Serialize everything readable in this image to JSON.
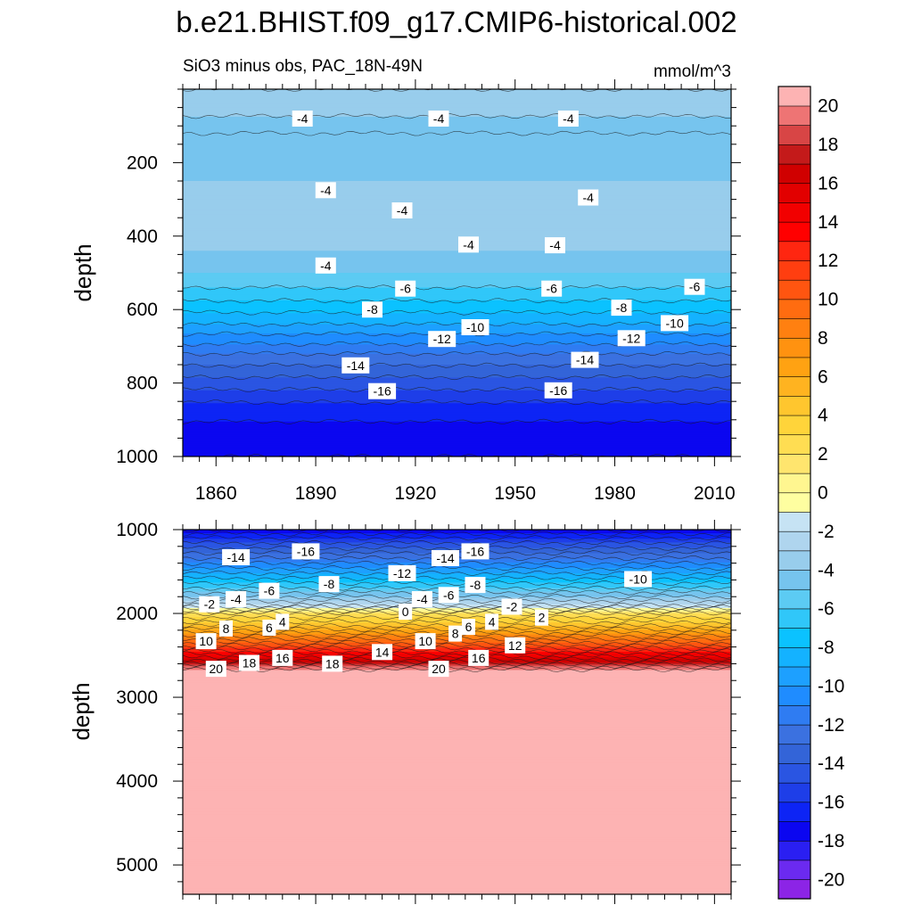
{
  "chart_data": {
    "type": "contour",
    "title": "b.e21.BHIST.f09_g17.CMIP6-historical.002",
    "subtitle_left": "SiO3 minus obs, PAC_18N-49N",
    "subtitle_right": "mmol/m^3",
    "panels": [
      {
        "name": "upper",
        "ylabel": "depth",
        "ylim": [
          0,
          1000
        ],
        "yticks": [
          200,
          400,
          600,
          800,
          1000
        ],
        "xticks": [
          1860,
          1890,
          1920,
          1950,
          1980,
          2010
        ],
        "xlim": [
          1850,
          2015
        ],
        "profile": [
          {
            "depth": 0,
            "value": -3
          },
          {
            "depth": 50,
            "value": -3.5
          },
          {
            "depth": 120,
            "value": -5
          },
          {
            "depth": 250,
            "value": -4
          },
          {
            "depth": 400,
            "value": -3.5
          },
          {
            "depth": 480,
            "value": -4.5
          },
          {
            "depth": 560,
            "value": -6.5
          },
          {
            "depth": 640,
            "value": -9
          },
          {
            "depth": 720,
            "value": -12
          },
          {
            "depth": 800,
            "value": -14.5
          },
          {
            "depth": 870,
            "value": -16.5
          },
          {
            "depth": 940,
            "value": -17.5
          },
          {
            "depth": 1000,
            "value": -18
          }
        ],
        "contour_labels": [
          {
            "x": 1886,
            "d": 80,
            "text": "-4"
          },
          {
            "x": 1927,
            "d": 80,
            "text": "-4"
          },
          {
            "x": 1966,
            "d": 80,
            "text": "-4"
          },
          {
            "x": 1893,
            "d": 275,
            "text": "-4"
          },
          {
            "x": 1916,
            "d": 330,
            "text": "-4"
          },
          {
            "x": 1972,
            "d": 295,
            "text": "-4"
          },
          {
            "x": 1936,
            "d": 423,
            "text": "-4"
          },
          {
            "x": 1962,
            "d": 425,
            "text": "-4"
          },
          {
            "x": 1893,
            "d": 480,
            "text": "-4"
          },
          {
            "x": 1917,
            "d": 543,
            "text": "-6"
          },
          {
            "x": 1961,
            "d": 543,
            "text": "-6"
          },
          {
            "x": 2004,
            "d": 538,
            "text": "-6"
          },
          {
            "x": 1907,
            "d": 600,
            "text": "-8"
          },
          {
            "x": 1982,
            "d": 595,
            "text": "-8"
          },
          {
            "x": 1938,
            "d": 648,
            "text": "-10"
          },
          {
            "x": 1998,
            "d": 637,
            "text": "-10"
          },
          {
            "x": 1928,
            "d": 680,
            "text": "-12"
          },
          {
            "x": 1985,
            "d": 678,
            "text": "-12"
          },
          {
            "x": 1902,
            "d": 752,
            "text": "-14"
          },
          {
            "x": 1971,
            "d": 737,
            "text": "-14"
          },
          {
            "x": 1910,
            "d": 822,
            "text": "-16"
          },
          {
            "x": 1963,
            "d": 820,
            "text": "-16"
          }
        ]
      },
      {
        "name": "lower",
        "ylabel": "depth",
        "ylim": [
          1000,
          5350
        ],
        "yticks": [
          1000,
          2000,
          3000,
          4000,
          5000
        ],
        "xlim": [
          1850,
          2015
        ],
        "profile": [
          {
            "depth": 1000,
            "value": -18
          },
          {
            "depth": 1100,
            "value": -16
          },
          {
            "depth": 1400,
            "value": -11
          },
          {
            "depth": 1700,
            "value": -6
          },
          {
            "depth": 1900,
            "value": -2
          },
          {
            "depth": 2000,
            "value": 2
          },
          {
            "depth": 2150,
            "value": 5
          },
          {
            "depth": 2350,
            "value": 10
          },
          {
            "depth": 2550,
            "value": 16
          },
          {
            "depth": 2700,
            "value": 21
          },
          {
            "depth": 5350,
            "value": 21
          }
        ],
        "contour_labels": [
          {
            "x": 1866,
            "d": 1330,
            "text": "-14"
          },
          {
            "x": 1887,
            "d": 1260,
            "text": "-16"
          },
          {
            "x": 1916,
            "d": 1520,
            "text": "-12"
          },
          {
            "x": 1929,
            "d": 1340,
            "text": "-14"
          },
          {
            "x": 1938,
            "d": 1260,
            "text": "-16"
          },
          {
            "x": 1987,
            "d": 1590,
            "text": "-10"
          },
          {
            "x": 1894,
            "d": 1650,
            "text": "-8"
          },
          {
            "x": 1938,
            "d": 1660,
            "text": "-8"
          },
          {
            "x": 1876,
            "d": 1730,
            "text": "-6"
          },
          {
            "x": 1930,
            "d": 1780,
            "text": "-6"
          },
          {
            "x": 1866,
            "d": 1830,
            "text": "-4"
          },
          {
            "x": 1922,
            "d": 1830,
            "text": "-4"
          },
          {
            "x": 1858,
            "d": 1890,
            "text": "-2"
          },
          {
            "x": 1949,
            "d": 1920,
            "text": "-2"
          },
          {
            "x": 1917,
            "d": 1980,
            "text": "0"
          },
          {
            "x": 1958,
            "d": 2050,
            "text": "2"
          },
          {
            "x": 1880,
            "d": 2100,
            "text": "4"
          },
          {
            "x": 1943,
            "d": 2100,
            "text": "4"
          },
          {
            "x": 1863,
            "d": 2180,
            "text": "8"
          },
          {
            "x": 1876,
            "d": 2170,
            "text": "6"
          },
          {
            "x": 1932,
            "d": 2240,
            "text": "8"
          },
          {
            "x": 1936,
            "d": 2160,
            "text": "6"
          },
          {
            "x": 1857,
            "d": 2330,
            "text": "10"
          },
          {
            "x": 1923,
            "d": 2330,
            "text": "10"
          },
          {
            "x": 1950,
            "d": 2380,
            "text": "12"
          },
          {
            "x": 1910,
            "d": 2460,
            "text": "14"
          },
          {
            "x": 1880,
            "d": 2530,
            "text": "16"
          },
          {
            "x": 1939,
            "d": 2530,
            "text": "16"
          },
          {
            "x": 1870,
            "d": 2590,
            "text": "18"
          },
          {
            "x": 1895,
            "d": 2600,
            "text": "18"
          },
          {
            "x": 1860,
            "d": 2660,
            "text": "20"
          },
          {
            "x": 1927,
            "d": 2660,
            "text": "20"
          }
        ]
      }
    ],
    "colorbar": {
      "levels": [
        -21,
        -20,
        -19,
        -18,
        -17,
        -16,
        -15,
        -14,
        -13,
        -12,
        -11,
        -10,
        -9,
        -8,
        -7,
        -6,
        -5,
        -4,
        -3,
        -2,
        -1,
        0,
        1,
        2,
        3,
        4,
        5,
        6,
        7,
        8,
        9,
        10,
        11,
        12,
        13,
        14,
        15,
        16,
        17,
        18,
        19,
        20,
        21
      ],
      "colors": [
        "#8c24e6",
        "#6b2af0",
        "#2a1ff2",
        "#0b06f0",
        "#0d24f5",
        "#1e3ee8",
        "#2a55e2",
        "#3364d8",
        "#3b71e0",
        "#2f7cf2",
        "#1f8cff",
        "#1da0ff",
        "#14b2ff",
        "#0bc2ff",
        "#30c7f9",
        "#5ccbf3",
        "#76c4ee",
        "#98cdec",
        "#afd5ee",
        "#c6e3f4",
        "#fefea0",
        "#fff690",
        "#ffe56e",
        "#ffdd52",
        "#ffd43a",
        "#ffc62e",
        "#ffb320",
        "#ffa212",
        "#ff9210",
        "#ff8010",
        "#ff6c10",
        "#ff5510",
        "#ff3e10",
        "#ff2610",
        "#ff0000",
        "#f20000",
        "#e20000",
        "#d00000",
        "#c41a1a",
        "#d84545",
        "#ee7474",
        "#fdb3b3"
      ],
      "ticks": [
        20,
        18,
        16,
        14,
        12,
        10,
        8,
        6,
        4,
        2,
        0,
        -2,
        -4,
        -6,
        -8,
        -10,
        -12,
        -14,
        -16,
        -18,
        -20
      ],
      "tick_labels": [
        "20",
        "18",
        "16",
        "14",
        "12",
        "10",
        "8",
        "6",
        "4",
        "2",
        "0",
        "-2",
        "-4",
        "-6",
        "-8",
        "-10",
        "-12",
        "-14",
        "-16",
        "-18",
        "-20"
      ]
    }
  }
}
